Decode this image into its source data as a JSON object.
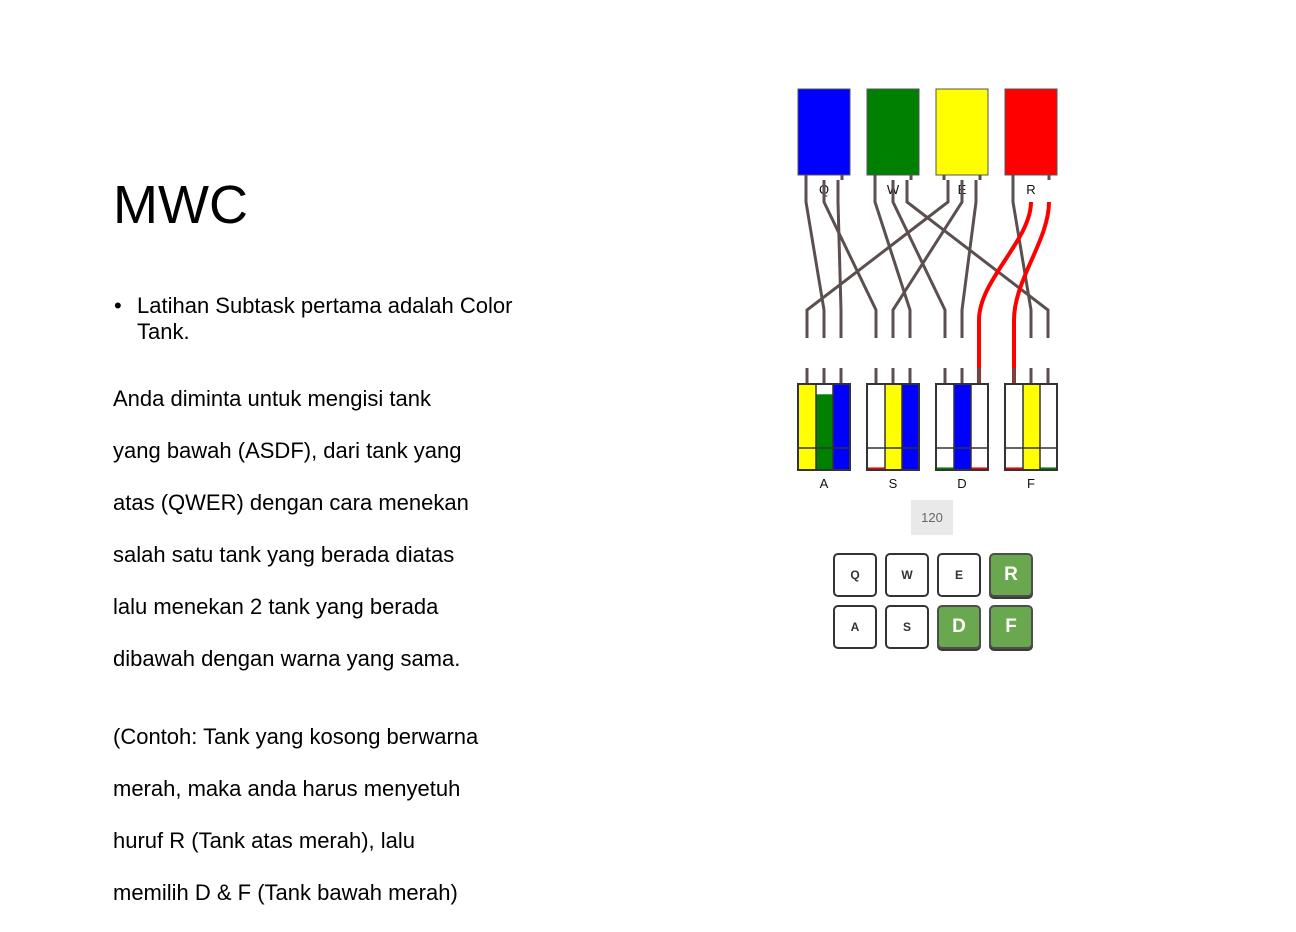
{
  "slide": {
    "title": "MWC",
    "bullet": "Latihan Subtask pertama adalah Color Tank.",
    "paragraph_lines": [
      "Anda diminta untuk mengisi tank",
      "yang bawah (ASDF), dari tank yang",
      "atas (QWER) dengan cara menekan",
      "salah satu tank yang berada diatas",
      "lalu menekan 2 tank yang berada",
      "dibawah dengan warna yang sama."
    ],
    "example_lines": [
      "(Contoh: Tank yang kosong berwarna",
      "merah, maka anda harus menyetuh",
      "huruf R (Tank atas merah), lalu",
      "memilih D & F (Tank bawah merah)"
    ]
  },
  "game": {
    "top_tanks": [
      {
        "label": "Q",
        "color": "#0000ff"
      },
      {
        "label": "W",
        "color": "#008000"
      },
      {
        "label": "E",
        "color": "#ffff00"
      },
      {
        "label": "R",
        "color": "#ff0000"
      }
    ],
    "bottom_tanks": [
      {
        "label": "A",
        "cols": [
          {
            "color": "#ffff00",
            "fill": 1.0
          },
          {
            "color": "#008000",
            "fill": 0.88
          },
          {
            "color": "#0000ff",
            "fill": 1.0
          }
        ]
      },
      {
        "label": "S",
        "cols": [
          {
            "color": "#ff0000",
            "fill": 0.03
          },
          {
            "color": "#ffff00",
            "fill": 1.0
          },
          {
            "color": "#0000ff",
            "fill": 1.0
          }
        ]
      },
      {
        "label": "D",
        "cols": [
          {
            "color": "#008000",
            "fill": 0.03
          },
          {
            "color": "#0000ff",
            "fill": 1.0
          },
          {
            "color": "#ff0000",
            "fill": 0.03
          }
        ]
      },
      {
        "label": "F",
        "cols": [
          {
            "color": "#ff0000",
            "fill": 0.03
          },
          {
            "color": "#ffff00",
            "fill": 1.0
          },
          {
            "color": "#008000",
            "fill": 0.03
          }
        ]
      }
    ],
    "pipe_color": "#5b4f4f",
    "active_pipe_color": "#ff0000",
    "timer": "120",
    "keys_row1": [
      {
        "label": "Q",
        "active": false
      },
      {
        "label": "W",
        "active": false
      },
      {
        "label": "E",
        "active": false
      },
      {
        "label": "R",
        "active": true
      }
    ],
    "keys_row2": [
      {
        "label": "A",
        "active": false
      },
      {
        "label": "S",
        "active": false
      },
      {
        "label": "D",
        "active": true
      },
      {
        "label": "F",
        "active": true
      }
    ]
  }
}
